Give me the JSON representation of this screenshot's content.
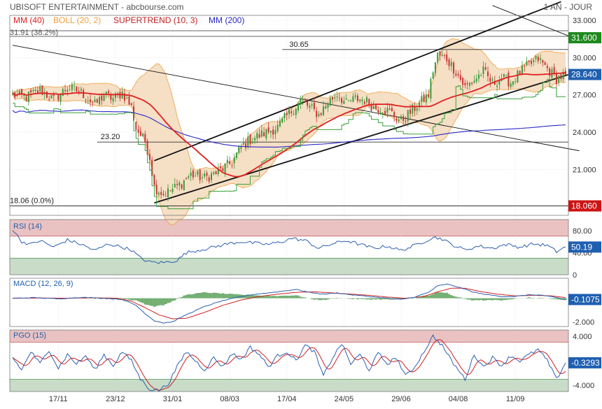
{
  "header": {
    "title": "UBISOFT ENTERTAINMENT - abcbourse.com",
    "period": "1 AN - JOUR"
  },
  "colors": {
    "grid": "#d8d8d8",
    "frame": "#7a7a7a",
    "candle_up": "#3a9a3a",
    "candle_down": "#c83232",
    "mm40": "#e02020",
    "mm200": "#2828c8",
    "boll_fill": "#f3d9bb",
    "boll_line": "#f0a040",
    "supertrend": "#3aa03a",
    "overbought": "#eac2c2",
    "oversold": "#c8dcc8",
    "rsi_line": "#2c5fb0",
    "macd_line": "#2c5fb0",
    "signal_line": "#d02020",
    "histogram": "#5aa05a",
    "pgo_line": "#2c5fb0",
    "pgo_signal": "#d02020",
    "label_green": "#1e8a1e",
    "label_red": "#cc1414",
    "label_blue": "#1f5fb0"
  },
  "chart_data": [
    {
      "type": "candlestick",
      "panel": "price",
      "legend": [
        {
          "label": "MM (40)",
          "color": "#e02020"
        },
        {
          "label": "BOLL (20, 2)",
          "color": "#f0a040"
        },
        {
          "label": "SUPERTREND (10, 3)",
          "color": "#c02020"
        },
        {
          "label": "MM (200)",
          "color": "#2828c8"
        }
      ],
      "x_labels": [
        "17/11",
        "23/12",
        "31/01",
        "08/03",
        "17/04",
        "24/05",
        "29/06",
        "04/08",
        "11/09"
      ],
      "x_label_index": [
        20,
        45,
        70,
        95,
        120,
        145,
        170,
        195,
        220
      ],
      "y_ticks": [
        "33.000",
        "30.000",
        "27.000",
        "24.000",
        "21.000"
      ],
      "y_tick_values": [
        33,
        30,
        27,
        24,
        21
      ],
      "ylim": [
        17.3,
        33.4
      ],
      "fibo_top_label": "31.91 (38.2%)",
      "levels": [
        {
          "label": "30.65",
          "value": 30.65
        },
        {
          "label": "23.20",
          "value": 23.2
        },
        {
          "label": "18.06 (0.0%)",
          "value": 18.06
        }
      ],
      "price_badges": [
        {
          "text": "31.600",
          "value": 31.6,
          "color": "#1e8a1e"
        },
        {
          "text": "28.640",
          "value": 28.64,
          "color": "#1f5fb0"
        },
        {
          "text": "18.060",
          "value": 18.06,
          "color": "#cc1414"
        }
      ],
      "trendlines": [
        {
          "from": [
            0,
            31.0
          ],
          "to": [
            248,
            22.5
          ]
        },
        {
          "from": [
            62,
            21.7
          ],
          "to": [
            240,
            34.5
          ]
        },
        {
          "from": [
            62,
            18.3
          ],
          "to": [
            248,
            28.9
          ]
        },
        {
          "from": [
            210,
            34.2
          ],
          "to": [
            248,
            31.4
          ]
        }
      ],
      "close_anchors": [
        [
          0,
          27.0
        ],
        [
          6,
          26.8
        ],
        [
          12,
          27.4
        ],
        [
          18,
          26.6
        ],
        [
          24,
          27.6
        ],
        [
          30,
          27.2
        ],
        [
          36,
          26.2
        ],
        [
          40,
          27.0
        ],
        [
          44,
          26.7
        ],
        [
          48,
          27.2
        ],
        [
          52,
          26.0
        ],
        [
          54,
          24.3
        ],
        [
          58,
          23.2
        ],
        [
          60,
          22.0
        ],
        [
          62,
          19.6
        ],
        [
          66,
          19.0
        ],
        [
          70,
          19.4
        ],
        [
          74,
          19.9
        ],
        [
          78,
          20.6
        ],
        [
          84,
          20.3
        ],
        [
          90,
          20.8
        ],
        [
          96,
          21.6
        ],
        [
          100,
          22.8
        ],
        [
          104,
          23.4
        ],
        [
          110,
          23.9
        ],
        [
          116,
          24.4
        ],
        [
          120,
          25.3
        ],
        [
          126,
          26.5
        ],
        [
          130,
          26.0
        ],
        [
          134,
          25.4
        ],
        [
          138,
          26.4
        ],
        [
          142,
          27.1
        ],
        [
          146,
          26.3
        ],
        [
          150,
          26.7
        ],
        [
          154,
          26.6
        ],
        [
          158,
          26.0
        ],
        [
          162,
          25.9
        ],
        [
          166,
          25.5
        ],
        [
          170,
          24.9
        ],
        [
          174,
          25.6
        ],
        [
          178,
          26.3
        ],
        [
          182,
          27.0
        ],
        [
          184,
          29.0
        ],
        [
          186,
          30.2
        ],
        [
          190,
          29.9
        ],
        [
          194,
          28.9
        ],
        [
          198,
          27.6
        ],
        [
          202,
          28.2
        ],
        [
          206,
          28.9
        ],
        [
          210,
          27.9
        ],
        [
          214,
          28.4
        ],
        [
          218,
          28.0
        ],
        [
          222,
          28.8
        ],
        [
          226,
          29.4
        ],
        [
          230,
          29.9
        ],
        [
          234,
          29.1
        ],
        [
          238,
          28.3
        ],
        [
          242,
          28.64
        ]
      ]
    },
    {
      "type": "line",
      "panel": "rsi",
      "title": "RSI (14)",
      "y_ticks": [
        "80.00",
        "40.00",
        "0"
      ],
      "y_tick_values": [
        80,
        40,
        0
      ],
      "ylim": [
        0,
        100
      ],
      "zones": {
        "overbought": 70,
        "oversold": 30
      },
      "badge": {
        "text": "50.19",
        "value": 50.19
      },
      "anchors": [
        [
          0,
          82
        ],
        [
          4,
          60
        ],
        [
          8,
          55
        ],
        [
          12,
          62
        ],
        [
          18,
          50
        ],
        [
          24,
          63
        ],
        [
          30,
          55
        ],
        [
          36,
          44
        ],
        [
          42,
          56
        ],
        [
          48,
          50
        ],
        [
          52,
          45
        ],
        [
          56,
          30
        ],
        [
          60,
          23
        ],
        [
          66,
          22
        ],
        [
          72,
          26
        ],
        [
          76,
          40
        ],
        [
          82,
          45
        ],
        [
          88,
          50
        ],
        [
          94,
          56
        ],
        [
          100,
          60
        ],
        [
          106,
          57
        ],
        [
          112,
          55
        ],
        [
          118,
          60
        ],
        [
          122,
          66
        ],
        [
          128,
          62
        ],
        [
          134,
          48
        ],
        [
          140,
          56
        ],
        [
          146,
          62
        ],
        [
          152,
          55
        ],
        [
          158,
          48
        ],
        [
          164,
          52
        ],
        [
          170,
          44
        ],
        [
          176,
          53
        ],
        [
          180,
          60
        ],
        [
          184,
          68
        ],
        [
          188,
          65
        ],
        [
          192,
          55
        ],
        [
          198,
          45
        ],
        [
          204,
          52
        ],
        [
          210,
          48
        ],
        [
          216,
          55
        ],
        [
          222,
          50
        ],
        [
          228,
          56
        ],
        [
          234,
          53
        ],
        [
          238,
          42
        ],
        [
          242,
          50.19
        ]
      ]
    },
    {
      "type": "line",
      "panel": "macd",
      "title": "MACD (12, 26, 9)",
      "y_ticks": [
        "0",
        "-2.000"
      ],
      "y_tick_values": [
        0,
        -2
      ],
      "ylim": [
        -2.4,
        1.7
      ],
      "badge": {
        "text": "-0.1075",
        "value": -0.1075
      },
      "macd_anchors": [
        [
          0,
          0.0
        ],
        [
          10,
          0.05
        ],
        [
          20,
          -0.05
        ],
        [
          30,
          0.08
        ],
        [
          40,
          0.0
        ],
        [
          48,
          -0.1
        ],
        [
          54,
          -0.6
        ],
        [
          58,
          -1.3
        ],
        [
          62,
          -1.9
        ],
        [
          66,
          -2.1
        ],
        [
          70,
          -2.0
        ],
        [
          76,
          -1.4
        ],
        [
          84,
          -0.7
        ],
        [
          92,
          -0.2
        ],
        [
          100,
          0.15
        ],
        [
          106,
          0.35
        ],
        [
          112,
          0.45
        ],
        [
          118,
          0.6
        ],
        [
          124,
          0.75
        ],
        [
          130,
          0.5
        ],
        [
          136,
          0.35
        ],
        [
          142,
          0.45
        ],
        [
          148,
          0.3
        ],
        [
          156,
          0.15
        ],
        [
          164,
          0.0
        ],
        [
          170,
          -0.1
        ],
        [
          176,
          0.1
        ],
        [
          182,
          0.5
        ],
        [
          186,
          1.05
        ],
        [
          190,
          1.2
        ],
        [
          196,
          0.9
        ],
        [
          202,
          0.5
        ],
        [
          208,
          0.3
        ],
        [
          214,
          0.15
        ],
        [
          220,
          0.15
        ],
        [
          226,
          0.3
        ],
        [
          232,
          0.25
        ],
        [
          238,
          0.05
        ],
        [
          242,
          -0.1075
        ]
      ],
      "signal_anchors": [
        [
          0,
          0.0
        ],
        [
          12,
          0.02
        ],
        [
          24,
          0.0
        ],
        [
          36,
          0.04
        ],
        [
          46,
          0.0
        ],
        [
          52,
          -0.25
        ],
        [
          58,
          -0.8
        ],
        [
          64,
          -1.4
        ],
        [
          70,
          -1.75
        ],
        [
          76,
          -1.7
        ],
        [
          84,
          -1.2
        ],
        [
          92,
          -0.6
        ],
        [
          100,
          -0.15
        ],
        [
          108,
          0.15
        ],
        [
          116,
          0.35
        ],
        [
          124,
          0.5
        ],
        [
          132,
          0.55
        ],
        [
          140,
          0.45
        ],
        [
          148,
          0.35
        ],
        [
          156,
          0.25
        ],
        [
          164,
          0.1
        ],
        [
          172,
          0.0
        ],
        [
          180,
          0.15
        ],
        [
          186,
          0.55
        ],
        [
          192,
          0.85
        ],
        [
          198,
          0.85
        ],
        [
          204,
          0.6
        ],
        [
          212,
          0.35
        ],
        [
          220,
          0.2
        ],
        [
          228,
          0.25
        ],
        [
          236,
          0.2
        ],
        [
          242,
          0.05
        ]
      ]
    },
    {
      "type": "line",
      "panel": "pgo",
      "title": "PGO (15)",
      "y_ticks": [
        "4.000",
        "-4.000"
      ],
      "y_tick_values": [
        4,
        -4
      ],
      "ylim": [
        -5.0,
        5.0
      ],
      "zones": {
        "overbought": 3,
        "oversold": -3
      },
      "badge": {
        "text": "-0.3293",
        "value": -0.3293
      },
      "anchors": [
        [
          0,
          0.5
        ],
        [
          4,
          -1.5
        ],
        [
          8,
          1.5
        ],
        [
          12,
          -0.5
        ],
        [
          16,
          1.8
        ],
        [
          20,
          -1.2
        ],
        [
          24,
          1.0
        ],
        [
          28,
          -0.5
        ],
        [
          32,
          0.8
        ],
        [
          36,
          -1.5
        ],
        [
          40,
          1.0
        ],
        [
          44,
          -0.8
        ],
        [
          48,
          1.5
        ],
        [
          52,
          0.0
        ],
        [
          56,
          -3.0
        ],
        [
          60,
          -4.6
        ],
        [
          64,
          -4.8
        ],
        [
          68,
          -3.8
        ],
        [
          72,
          -1.0
        ],
        [
          76,
          1.5
        ],
        [
          80,
          0.0
        ],
        [
          84,
          -1.5
        ],
        [
          88,
          0.5
        ],
        [
          92,
          -1.0
        ],
        [
          96,
          1.2
        ],
        [
          100,
          0.2
        ],
        [
          104,
          2.2
        ],
        [
          108,
          1.0
        ],
        [
          112,
          -1.0
        ],
        [
          116,
          0.8
        ],
        [
          120,
          1.5
        ],
        [
          124,
          0.0
        ],
        [
          128,
          2.5
        ],
        [
          132,
          1.5
        ],
        [
          136,
          -2.5
        ],
        [
          140,
          0.5
        ],
        [
          144,
          2.8
        ],
        [
          148,
          -0.5
        ],
        [
          152,
          1.0
        ],
        [
          156,
          -1.5
        ],
        [
          160,
          1.2
        ],
        [
          164,
          -0.5
        ],
        [
          168,
          0.5
        ],
        [
          172,
          -2.5
        ],
        [
          176,
          -1.0
        ],
        [
          180,
          1.5
        ],
        [
          184,
          4.0
        ],
        [
          188,
          2.5
        ],
        [
          192,
          0.0
        ],
        [
          196,
          -2.0
        ],
        [
          198,
          -3.0
        ],
        [
          202,
          1.0
        ],
        [
          206,
          -1.0
        ],
        [
          210,
          0.5
        ],
        [
          214,
          -0.8
        ],
        [
          218,
          0.8
        ],
        [
          222,
          0.0
        ],
        [
          226,
          1.0
        ],
        [
          230,
          1.8
        ],
        [
          234,
          0.0
        ],
        [
          238,
          -3.0
        ],
        [
          242,
          -0.3293
        ]
      ]
    }
  ]
}
